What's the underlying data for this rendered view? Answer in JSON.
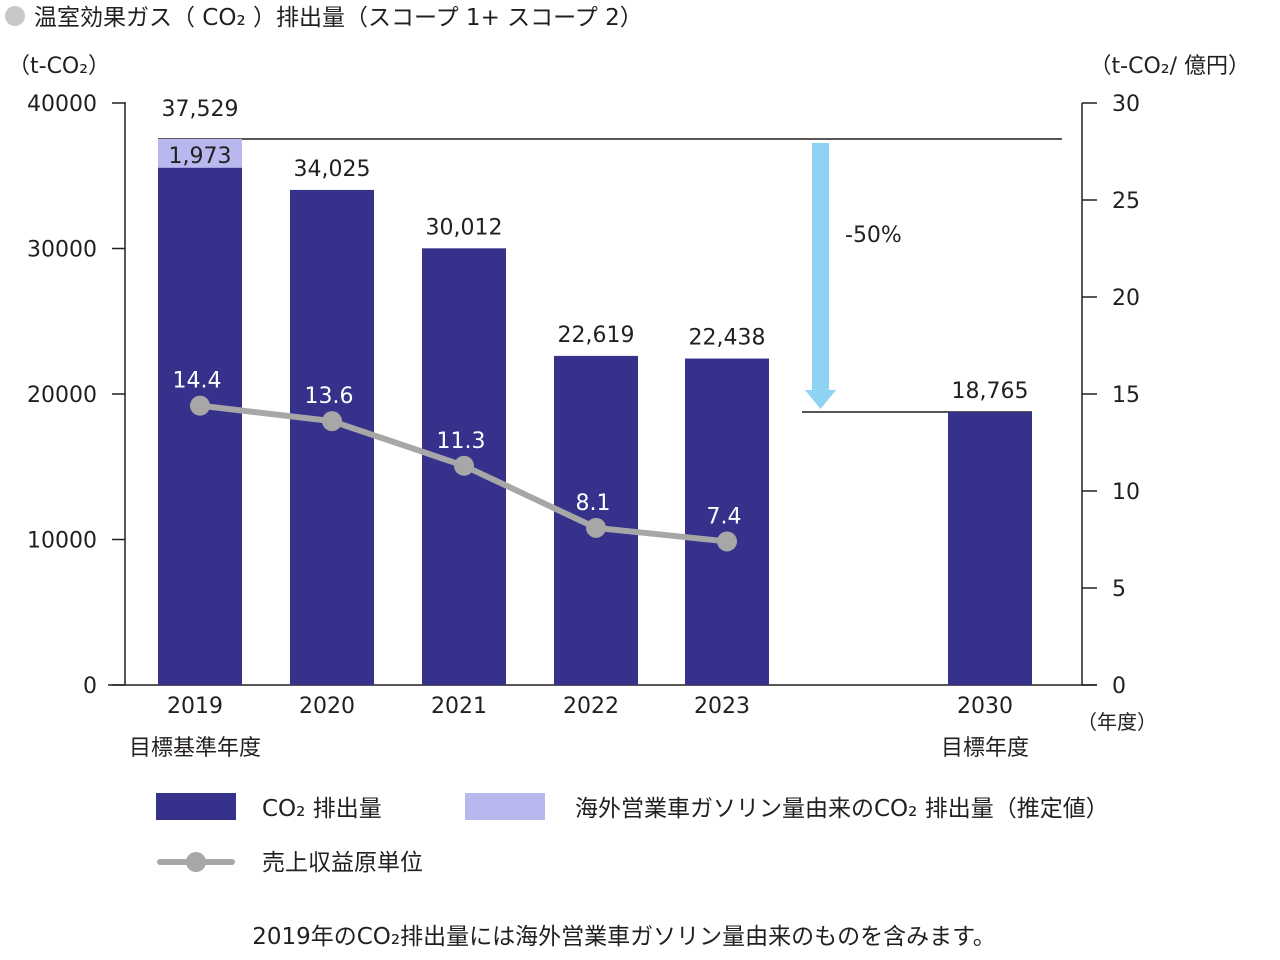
{
  "title": "温室効果ガス（ CO₂ ）排出量（スコープ 1+ スコープ 2）",
  "note": "2019年のCO₂排出量には海外営業車ガソリン量由来のものを含みます。",
  "colors": {
    "bar": "#36318b",
    "bar_estimated": "#b8b7ee",
    "line": "#a7a7a7",
    "arrow": "#8ed3f3",
    "bullet": "#c8c8c8"
  },
  "chart_data": {
    "type": "bar",
    "categories": [
      "2019",
      "2020",
      "2021",
      "2022",
      "2023",
      "2030"
    ],
    "category_sublabels": [
      "目標基準年度",
      "",
      "",
      "",
      "",
      "目標年度"
    ],
    "series": [
      {
        "name": "CO₂ 排出量",
        "axis": "left",
        "type": "bar",
        "values": [
          35556,
          34025,
          30012,
          22619,
          22438,
          18765
        ]
      },
      {
        "name": "海外営業車ガソリン量由来のCO₂ 排出量（推定値）",
        "axis": "left",
        "type": "bar-stacked",
        "values": [
          1973,
          null,
          null,
          null,
          null,
          null
        ]
      },
      {
        "name": "売上収益原単位",
        "axis": "right",
        "type": "line",
        "values": [
          14.4,
          13.6,
          11.3,
          8.1,
          7.4,
          null
        ]
      }
    ],
    "bar_total_labels": [
      "37,529",
      "34,025",
      "30,012",
      "22,619",
      "22,438",
      "18,765"
    ],
    "stack_labels": [
      "1,973",
      "",
      "",
      "",
      "",
      ""
    ],
    "line_labels": [
      "14.4",
      "13.6",
      "11.3",
      "8.1",
      "7.4",
      ""
    ],
    "left_axis": {
      "label": "（t-CO₂）",
      "ylim": [
        0,
        40000
      ],
      "ticks": [
        "0",
        "10000",
        "20000",
        "30000",
        "40000"
      ]
    },
    "right_axis": {
      "label": "（t-CO₂/ 億円）",
      "ylim": [
        0,
        30
      ],
      "ticks": [
        "0",
        "5",
        "10",
        "15",
        "20",
        "25",
        "30"
      ]
    },
    "x_unit_label": "（年度）",
    "reference_value": 37529,
    "target_value": 18765,
    "target_annotation": "-50%",
    "legend": [
      {
        "label": "CO₂ 排出量",
        "kind": "bar"
      },
      {
        "label": "海外営業車ガソリン量由来のCO₂ 排出量（推定値）",
        "kind": "bar_estimated"
      },
      {
        "label": "売上収益原単位",
        "kind": "line"
      }
    ]
  }
}
